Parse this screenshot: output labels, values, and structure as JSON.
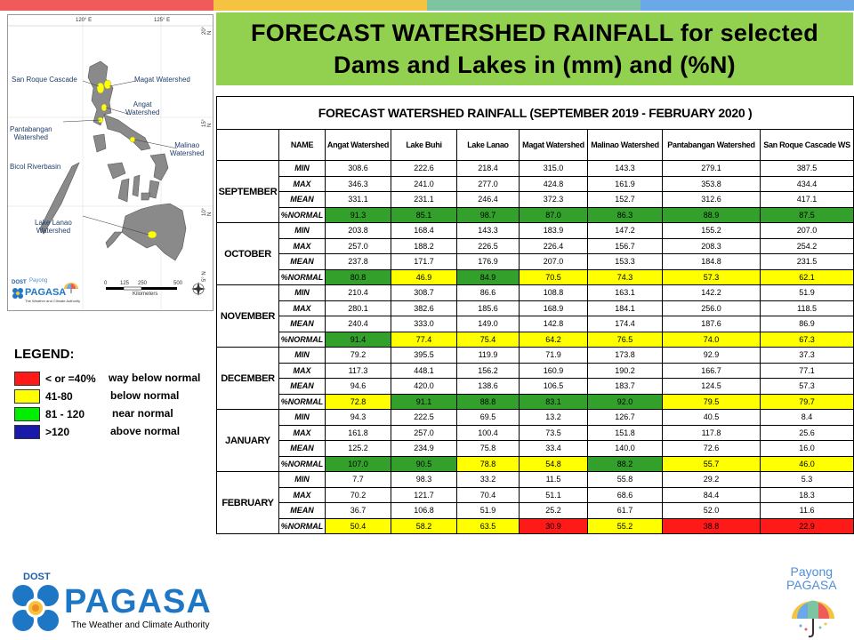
{
  "title": "FORECAST WATERSHED RAINFALL   for selected\nDams and Lakes in (mm) and (%N)",
  "colors": {
    "title_bg": "#92d050",
    "top_bar": [
      "#f15a5a",
      "#f5c242",
      "#7dc5a0",
      "#6aa8e8"
    ],
    "way_below": "#ff1a1a",
    "below": "#ffff00",
    "near": "#33a02c",
    "above": "#1a1aaa"
  },
  "map": {
    "coords": [
      "120° E",
      "125° E",
      "20° N",
      "15° N",
      "10° N",
      "5° N"
    ],
    "labels": {
      "san_roque": "San Roque Cascade",
      "magat": "Magat Watershed",
      "angat": "Angat\nWatershed",
      "pantabangan": "Pantabangan\nWatershed",
      "malinao": "Malinao\nWatershed",
      "bicol": "Bicol Riverbasin",
      "lanao": "Lake Lanao\nWatershed"
    },
    "scale_ticks": [
      "0",
      "125",
      "250",
      "500"
    ],
    "scale_unit": "Kilometers",
    "mini_logo": {
      "dost": "DOST",
      "payong": "Payong",
      "name": "PAGASA",
      "tagline": "The Weather and Climate Authority"
    }
  },
  "legend": {
    "title": "LEGEND:",
    "items": [
      {
        "range": "< or =40%",
        "label": "way below normal",
        "color": "#ff1a1a"
      },
      {
        "range": "41-80",
        "label": "below normal",
        "color": "#ffff00"
      },
      {
        "range": "81 - 120",
        "label": "near normal",
        "color": "#33a02c"
      },
      {
        "range": ">120",
        "label": "above normal",
        "color": "#1a1aaa"
      }
    ]
  },
  "table": {
    "title": "FORECAST WATERSHED RAINFALL (SEPTEMBER 2019 - FEBRUARY 2020 )",
    "name_header": "NAME",
    "columns": [
      "Angat Watershed",
      "Lake Buhi",
      "Lake Lanao",
      "Magat Watershed",
      "Malinao Watershed",
      "Pantabangan Watershed",
      "San Roque Cascade WS"
    ],
    "stat_labels": [
      "MIN",
      "MAX",
      "MEAN",
      "%NORMAL"
    ],
    "months": [
      {
        "name": "SEPTEMBER",
        "min": [
          "308.6",
          "222.6",
          "218.4",
          "315.0",
          "143.3",
          "279.1",
          "387.5"
        ],
        "max": [
          "346.3",
          "241.0",
          "277.0",
          "424.8",
          "161.9",
          "353.8",
          "434.4"
        ],
        "mean": [
          "331.1",
          "231.1",
          "246.4",
          "372.3",
          "152.7",
          "312.6",
          "417.1"
        ],
        "normal": [
          "91.3",
          "85.1",
          "98.7",
          "87.0",
          "86.3",
          "88.9",
          "87.5"
        ],
        "normal_class": [
          "green",
          "green",
          "green",
          "green",
          "green",
          "green",
          "green"
        ]
      },
      {
        "name": "OCTOBER",
        "min": [
          "203.8",
          "168.4",
          "143.3",
          "183.9",
          "147.2",
          "155.2",
          "207.0"
        ],
        "max": [
          "257.0",
          "188.2",
          "226.5",
          "226.4",
          "156.7",
          "208.3",
          "254.2"
        ],
        "mean": [
          "237.8",
          "171.7",
          "176.9",
          "207.0",
          "153.3",
          "184.8",
          "231.5"
        ],
        "normal": [
          "80.8",
          "46.9",
          "84.9",
          "70.5",
          "74.3",
          "57.3",
          "62.1"
        ],
        "normal_class": [
          "green",
          "yellow",
          "green",
          "yellow",
          "yellow",
          "yellow",
          "yellow"
        ]
      },
      {
        "name": "NOVEMBER",
        "min": [
          "210.4",
          "308.7",
          "86.6",
          "108.8",
          "163.1",
          "142.2",
          "51.9"
        ],
        "max": [
          "280.1",
          "382.6",
          "185.6",
          "168.9",
          "184.1",
          "256.0",
          "118.5"
        ],
        "mean": [
          "240.4",
          "333.0",
          "149.0",
          "142.8",
          "174.4",
          "187.6",
          "86.9"
        ],
        "normal": [
          "91.4",
          "77.4",
          "75.4",
          "64.2",
          "76.5",
          "74.0",
          "67.3"
        ],
        "normal_class": [
          "green",
          "yellow",
          "yellow",
          "yellow",
          "yellow",
          "yellow",
          "yellow"
        ]
      },
      {
        "name": "DECEMBER",
        "min": [
          "79.2",
          "395.5",
          "119.9",
          "71.9",
          "173.8",
          "92.9",
          "37.3"
        ],
        "max": [
          "117.3",
          "448.1",
          "156.2",
          "160.9",
          "190.2",
          "166.7",
          "77.1"
        ],
        "mean": [
          "94.6",
          "420.0",
          "138.6",
          "106.5",
          "183.7",
          "124.5",
          "57.3"
        ],
        "normal": [
          "72.8",
          "91.1",
          "88.8",
          "83.1",
          "92.0",
          "79.5",
          "79.7"
        ],
        "normal_class": [
          "yellow",
          "green",
          "green",
          "green",
          "green",
          "yellow",
          "yellow"
        ]
      },
      {
        "name": "JANUARY",
        "min": [
          "94.3",
          "222.5",
          "69.5",
          "13.2",
          "126.7",
          "40.5",
          "8.4"
        ],
        "max": [
          "161.8",
          "257.0",
          "100.4",
          "73.5",
          "151.8",
          "117.8",
          "25.6"
        ],
        "mean": [
          "125.2",
          "234.9",
          "75.8",
          "33.4",
          "140.0",
          "72.6",
          "16.0"
        ],
        "normal": [
          "107.0",
          "90.5",
          "78.8",
          "54.8",
          "88.2",
          "55.7",
          "46.0"
        ],
        "normal_class": [
          "green",
          "green",
          "yellow",
          "yellow",
          "green",
          "yellow",
          "yellow"
        ]
      },
      {
        "name": "FEBRUARY",
        "min": [
          "7.7",
          "98.3",
          "33.2",
          "11.5",
          "55.8",
          "29.2",
          "5.3"
        ],
        "max": [
          "70.2",
          "121.7",
          "70.4",
          "51.1",
          "68.6",
          "84.4",
          "18.3"
        ],
        "mean": [
          "36.7",
          "106.8",
          "51.9",
          "25.2",
          "61.7",
          "52.0",
          "11.6"
        ],
        "normal": [
          "50.4",
          "58.2",
          "63.5",
          "30.9",
          "55.2",
          "38.8",
          "22.9"
        ],
        "normal_class": [
          "yellow",
          "yellow",
          "yellow",
          "red",
          "yellow",
          "red",
          "red"
        ]
      }
    ]
  },
  "footer": {
    "dost": "DOST",
    "pagasa": "PAGASA",
    "tagline": "The Weather and Climate Authority",
    "payong": "Payong",
    "payong2": "PAGASA"
  }
}
